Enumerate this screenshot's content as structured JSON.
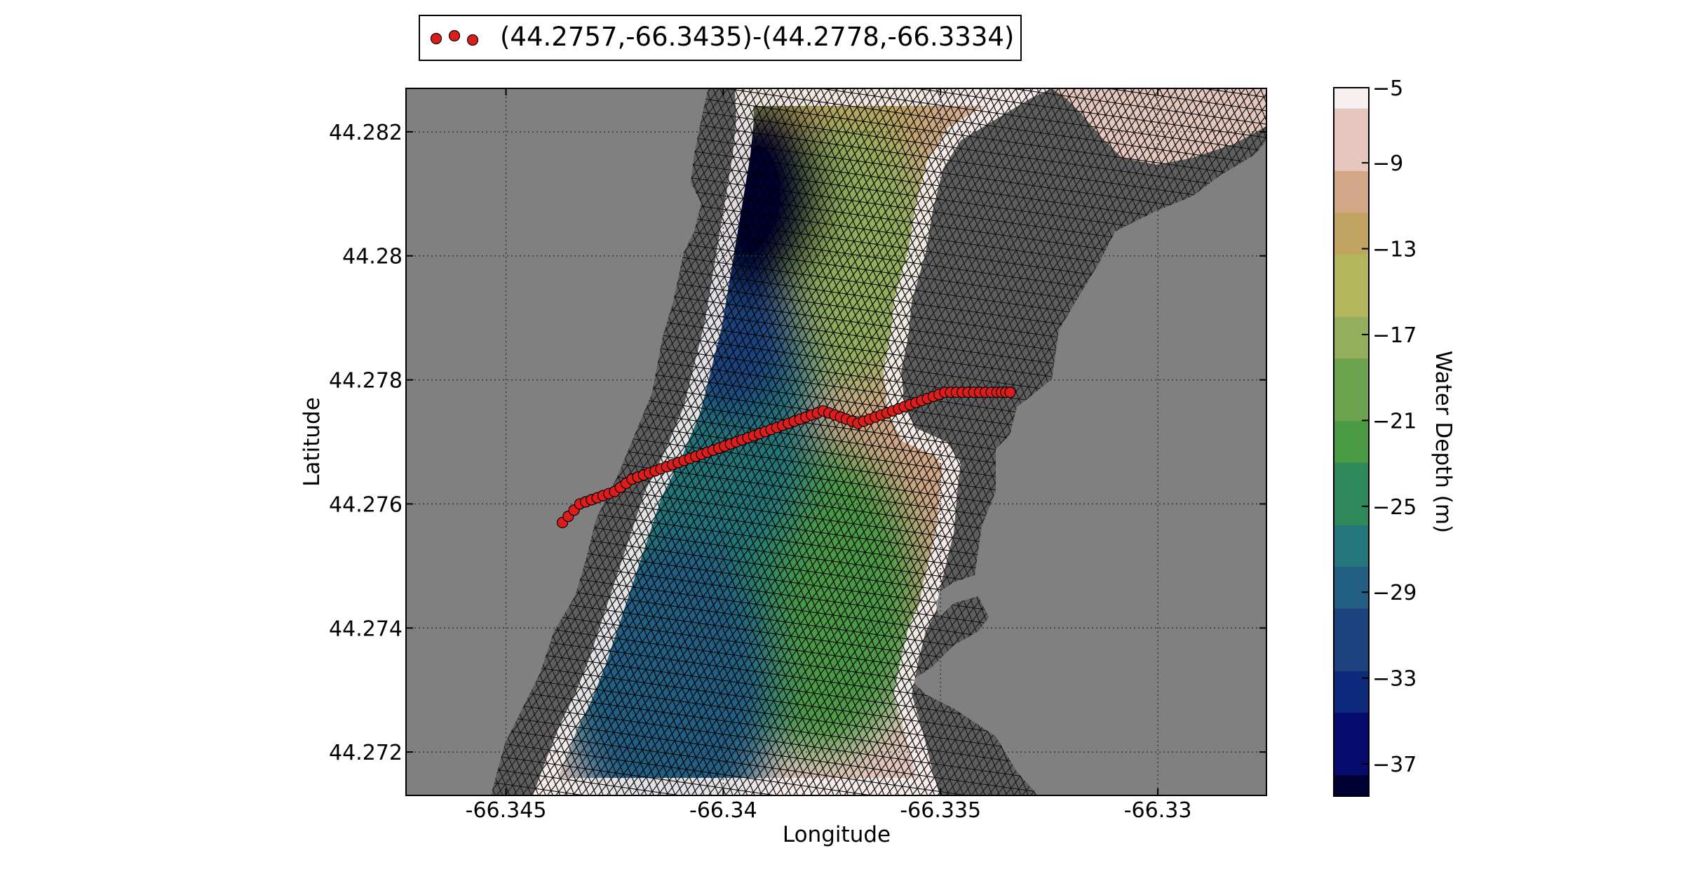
{
  "chart_data": {
    "type": "scatter",
    "plot_kind": "triangular-mesh bathymetry map with transect points",
    "xlabel": "Longitude",
    "ylabel": "Latitude",
    "xlim": [
      -66.3473,
      -66.3275
    ],
    "ylim": [
      44.2713,
      44.2827
    ],
    "x_ticks": [
      -66.345,
      -66.34,
      -66.335,
      -66.33
    ],
    "x_tick_labels": [
      "-66.345",
      "-66.34",
      "-66.335",
      "-66.33"
    ],
    "y_ticks": [
      44.272,
      44.274,
      44.276,
      44.278,
      44.28,
      44.282
    ],
    "y_tick_labels": [
      "44.272",
      "44.274",
      "44.276",
      "44.278",
      "44.28",
      "44.282"
    ],
    "grid": true,
    "background_color": "#808080",
    "mesh_line_color": "#000000",
    "colorbar": {
      "label": "Water Depth (m)",
      "range": [
        -38,
        -5
      ],
      "ticks": [
        -5,
        -9,
        -13,
        -17,
        -21,
        -25,
        -29,
        -33,
        -37
      ],
      "tick_labels": [
        "−5",
        "−9",
        "−13",
        "−17",
        "−21",
        "−25",
        "−29",
        "−33",
        "−37"
      ],
      "colormap": [
        "#f7f0ef",
        "#e6c7bd",
        "#d2a888",
        "#bfa561",
        "#b2b75c",
        "#93ae5c",
        "#6da24e",
        "#4b9a44",
        "#2e8a5b",
        "#23767a",
        "#235f83",
        "#1c437e",
        "#0d2a7c",
        "#060c6d",
        "#000033"
      ]
    },
    "legend": {
      "location": "top, above plot",
      "entries": [
        "(44.2757,-66.3435)-(44.2778,-66.3334)"
      ]
    },
    "marker_color": "#dd1c1c",
    "transect": {
      "name": "(44.2757,-66.3435)-(44.2778,-66.3334)",
      "x": [
        -66.3437,
        -66.3433,
        -66.3429,
        -66.3425,
        -66.3421,
        -66.3417,
        -66.3413,
        -66.3409,
        -66.3405,
        -66.3401,
        -66.3397,
        -66.3393,
        -66.3389,
        -66.3385,
        -66.3381,
        -66.3377,
        -66.3373,
        -66.3369,
        -66.3365,
        -66.3361,
        -66.3357,
        -66.3353,
        -66.3349,
        -66.3345,
        -66.3341,
        -66.3337,
        -66.3334
      ],
      "y": [
        44.2757,
        44.276,
        44.2761,
        44.2762,
        44.2764,
        44.2765,
        44.2766,
        44.2767,
        44.2768,
        44.2769,
        44.277,
        44.2771,
        44.2772,
        44.2773,
        44.2774,
        44.2775,
        44.2774,
        44.2773,
        44.2774,
        44.2775,
        44.2776,
        44.2777,
        44.2778,
        44.2778,
        44.2778,
        44.2778,
        44.2778
      ]
    },
    "depth_field_points": [
      {
        "x": -66.3392,
        "y": 44.281,
        "depth": -37
      },
      {
        "x": -66.3398,
        "y": 44.279,
        "depth": -32
      },
      {
        "x": -66.3402,
        "y": 44.2775,
        "depth": -27
      },
      {
        "x": -66.3408,
        "y": 44.2755,
        "depth": -24
      },
      {
        "x": -66.3412,
        "y": 44.273,
        "depth": -29
      },
      {
        "x": -66.3418,
        "y": 44.274,
        "depth": -24
      },
      {
        "x": -66.3378,
        "y": 44.2745,
        "depth": -22
      },
      {
        "x": -66.3372,
        "y": 44.28,
        "depth": -17
      },
      {
        "x": -66.343,
        "y": 44.2775,
        "depth": -13
      },
      {
        "x": -66.336,
        "y": 44.276,
        "depth": -9
      },
      {
        "x": -66.336,
        "y": 44.2815,
        "depth": -9
      },
      {
        "x": -66.3305,
        "y": 44.2822,
        "depth": -7
      },
      {
        "x": -66.3375,
        "y": 44.2825,
        "depth": -13
      },
      {
        "x": -66.3405,
        "y": 44.2825,
        "depth": -15
      }
    ]
  }
}
